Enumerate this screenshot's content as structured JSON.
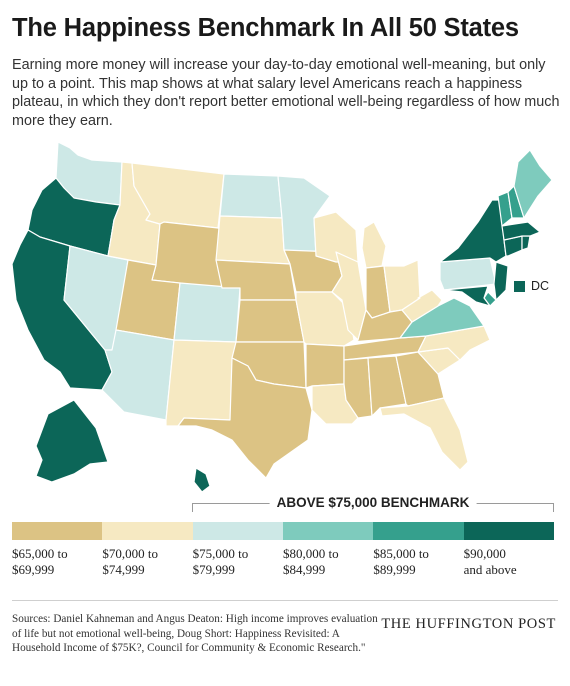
{
  "title": "The Happiness Benchmark In All 50 States",
  "description": "Earning more money will increase your day-to-day emotional well-meaning, but only up to a point. This map shows at what salary level Americans reach a happiness plateau, in which they don't report better emotional well-being regardless of how much more they earn.",
  "benchmark_label": "ABOVE $75,000 BENCHMARK",
  "legend": [
    {
      "label": "$65,000 to\n$69,999",
      "color": "#dcc384"
    },
    {
      "label": "$70,000 to\n$74,999",
      "color": "#f6e9c2"
    },
    {
      "label": "$75,000 to\n$79,999",
      "color": "#cde8e6"
    },
    {
      "label": "$80,000 to\n$84,999",
      "color": "#7ecbbd"
    },
    {
      "label": "$85,000 to\n$89,999",
      "color": "#35a08d"
    },
    {
      "label": "$90,000\nand above",
      "color": "#0c6658"
    }
  ],
  "dc": {
    "label": "DC",
    "color": "#0c6658"
  },
  "sources": "Sources: Daniel Kahneman and Angus Deaton: High income improves evaluation of life but not emotional well-being, Doug Short: Happiness Revisited: A Household Income of $75K?, Council for Community & Economic Research.\"",
  "brand": "THE HUFFINGTON POST",
  "states": [
    {
      "name": "Washington",
      "tier": 2
    },
    {
      "name": "Oregon",
      "tier": 5
    },
    {
      "name": "California",
      "tier": 5
    },
    {
      "name": "Nevada",
      "tier": 2
    },
    {
      "name": "Idaho",
      "tier": 1
    },
    {
      "name": "Montana",
      "tier": 1
    },
    {
      "name": "Wyoming",
      "tier": 0
    },
    {
      "name": "Utah",
      "tier": 0
    },
    {
      "name": "Arizona",
      "tier": 2
    },
    {
      "name": "Colorado",
      "tier": 2
    },
    {
      "name": "New Mexico",
      "tier": 1
    },
    {
      "name": "North Dakota",
      "tier": 2
    },
    {
      "name": "South Dakota",
      "tier": 1
    },
    {
      "name": "Nebraska",
      "tier": 0
    },
    {
      "name": "Kansas",
      "tier": 0
    },
    {
      "name": "Oklahoma",
      "tier": 0
    },
    {
      "name": "Texas",
      "tier": 0
    },
    {
      "name": "Minnesota",
      "tier": 2
    },
    {
      "name": "Iowa",
      "tier": 0
    },
    {
      "name": "Missouri",
      "tier": 1
    },
    {
      "name": "Arkansas",
      "tier": 0
    },
    {
      "name": "Louisiana",
      "tier": 1
    },
    {
      "name": "Wisconsin",
      "tier": 1
    },
    {
      "name": "Illinois",
      "tier": 1
    },
    {
      "name": "Michigan",
      "tier": 1
    },
    {
      "name": "Indiana",
      "tier": 0
    },
    {
      "name": "Ohio",
      "tier": 1
    },
    {
      "name": "Kentucky",
      "tier": 0
    },
    {
      "name": "Tennessee",
      "tier": 0
    },
    {
      "name": "Mississippi",
      "tier": 0
    },
    {
      "name": "Alabama",
      "tier": 0
    },
    {
      "name": "Georgia",
      "tier": 0
    },
    {
      "name": "Florida",
      "tier": 1
    },
    {
      "name": "South Carolina",
      "tier": 1
    },
    {
      "name": "North Carolina",
      "tier": 1
    },
    {
      "name": "Virginia",
      "tier": 3
    },
    {
      "name": "West Virginia",
      "tier": 1
    },
    {
      "name": "Pennsylvania",
      "tier": 2
    },
    {
      "name": "New York",
      "tier": 5
    },
    {
      "name": "New Jersey",
      "tier": 5
    },
    {
      "name": "Delaware",
      "tier": 4
    },
    {
      "name": "Maryland",
      "tier": 5
    },
    {
      "name": "Connecticut",
      "tier": 5
    },
    {
      "name": "Rhode Island",
      "tier": 5
    },
    {
      "name": "Massachusetts",
      "tier": 5
    },
    {
      "name": "Vermont",
      "tier": 4
    },
    {
      "name": "New Hampshire",
      "tier": 4
    },
    {
      "name": "Maine",
      "tier": 3
    },
    {
      "name": "Alaska",
      "tier": 5
    },
    {
      "name": "Hawaii",
      "tier": 5
    }
  ]
}
